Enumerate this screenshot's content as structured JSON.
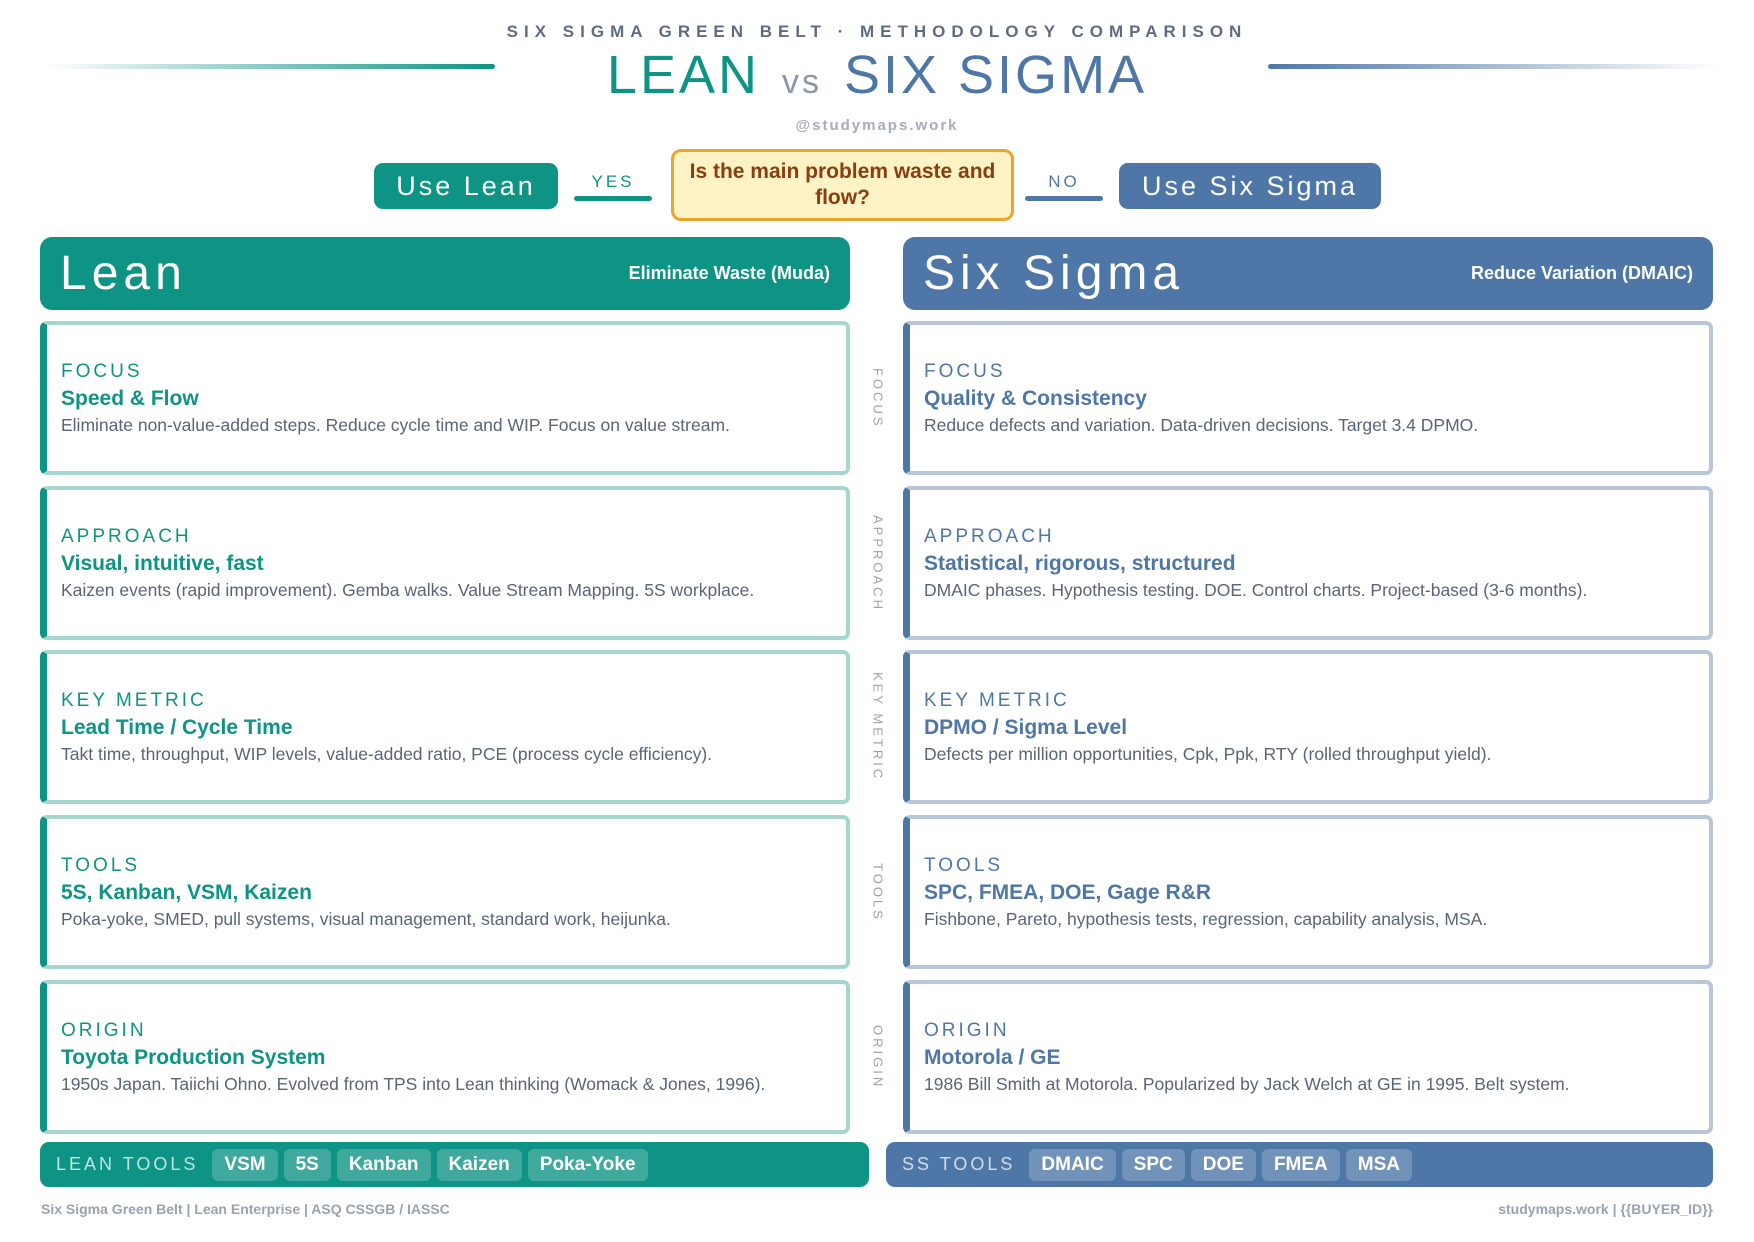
{
  "header": {
    "kicker": "SIX SIGMA GREEN BELT · METHODOLOGY COMPARISON",
    "title_left": "LEAN",
    "title_vs": "vs",
    "title_right": "SIX SIGMA",
    "handle": "@studymaps.work"
  },
  "decision": {
    "question": "Is the main problem waste and flow?",
    "yes": "YES",
    "no": "NO",
    "yes_result": "Use Lean",
    "no_result": "Use Six Sigma"
  },
  "colors": {
    "lean": "#0e9484",
    "six_sigma": "#4e77a8",
    "question_bg": "#fff2c4",
    "question_border": "#eca42a"
  },
  "row_labels": [
    "FOCUS",
    "APPROACH",
    "KEY METRIC",
    "TOOLS",
    "ORIGIN"
  ],
  "lean": {
    "name": "Lean",
    "subtitle": "Eliminate Waste (Muda)",
    "cards": [
      {
        "label": "FOCUS",
        "heading": "Speed & Flow",
        "body": "Eliminate non-value-added steps. Reduce cycle time and WIP. Focus on value stream."
      },
      {
        "label": "APPROACH",
        "heading": "Visual, intuitive, fast",
        "body": "Kaizen events (rapid improvement). Gemba walks. Value Stream Mapping. 5S workplace."
      },
      {
        "label": "KEY METRIC",
        "heading": "Lead Time / Cycle Time",
        "body": "Takt time, throughput, WIP levels, value-added ratio, PCE (process cycle efficiency)."
      },
      {
        "label": "TOOLS",
        "heading": "5S, Kanban, VSM, Kaizen",
        "body": "Poka-yoke, SMED, pull systems, visual management, standard work, heijunka."
      },
      {
        "label": "ORIGIN",
        "heading": "Toyota Production System",
        "body": "1950s Japan. Taiichi Ohno. Evolved from TPS into Lean thinking (Womack & Jones, 1996)."
      }
    ],
    "tools_label": "LEAN TOOLS",
    "tools": [
      "VSM",
      "5S",
      "Kanban",
      "Kaizen",
      "Poka-Yoke"
    ]
  },
  "six_sigma": {
    "name": "Six Sigma",
    "subtitle": "Reduce Variation (DMAIC)",
    "cards": [
      {
        "label": "FOCUS",
        "heading": "Quality & Consistency",
        "body": "Reduce defects and variation. Data-driven decisions. Target 3.4 DPMO."
      },
      {
        "label": "APPROACH",
        "heading": "Statistical, rigorous, structured",
        "body": "DMAIC phases. Hypothesis testing. DOE. Control charts. Project-based (3-6 months)."
      },
      {
        "label": "KEY METRIC",
        "heading": "DPMO / Sigma Level",
        "body": "Defects per million opportunities, Cpk, Ppk, RTY (rolled throughput yield)."
      },
      {
        "label": "TOOLS",
        "heading": "SPC, FMEA, DOE, Gage R&R",
        "body": "Fishbone, Pareto, hypothesis tests, regression, capability analysis, MSA."
      },
      {
        "label": "ORIGIN",
        "heading": "Motorola / GE",
        "body": "1986 Bill Smith at Motorola. Popularized by Jack Welch at GE in 1995. Belt system."
      }
    ],
    "tools_label": "SS TOOLS",
    "tools": [
      "DMAIC",
      "SPC",
      "DOE",
      "FMEA",
      "MSA"
    ]
  },
  "footer": {
    "left": "Six Sigma Green Belt | Lean Enterprise | ASQ CSSGB / IASSC",
    "right": "studymaps.work | {{BUYER_ID}}"
  }
}
